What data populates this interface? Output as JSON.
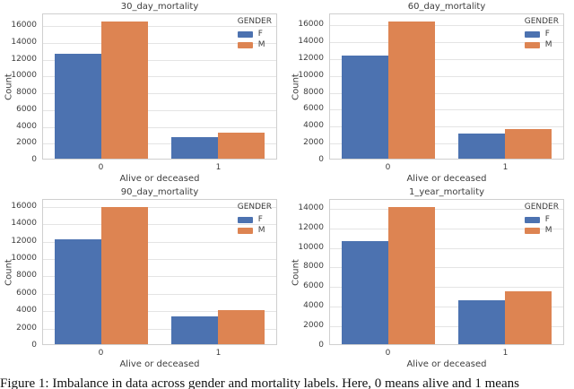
{
  "figure": {
    "caption": "Figure 1: Imbalance in data across gender and mortality labels. Here, 0 means alive and 1 means"
  },
  "style": {
    "female_color": "#4c72b0",
    "male_color": "#dd8452",
    "grid_color": "#e4e4e4",
    "spine_color": "#cfcfcf",
    "text_color": "#3d3d3d"
  },
  "legend": {
    "title": "GENDER",
    "entries": [
      "F",
      "M"
    ]
  },
  "chart_data": [
    {
      "type": "bar",
      "title": "30_day_mortality",
      "xlabel": "Alive or deceased",
      "ylabel": "Count",
      "categories": [
        "0",
        "1"
      ],
      "series": [
        {
          "name": "F",
          "color": "#4c72b0",
          "values": [
            12600,
            2600
          ]
        },
        {
          "name": "M",
          "color": "#dd8452",
          "values": [
            16500,
            3150
          ]
        }
      ],
      "ylim": [
        0,
        17400
      ],
      "ytick_step": 2000,
      "grid": true,
      "legend_title": "GENDER",
      "legend_position": "upper right"
    },
    {
      "type": "bar",
      "title": "60_day_mortality",
      "xlabel": "Alive or deceased",
      "ylabel": "Count",
      "categories": [
        "0",
        "1"
      ],
      "series": [
        {
          "name": "F",
          "color": "#4c72b0",
          "values": [
            12400,
            3000
          ]
        },
        {
          "name": "M",
          "color": "#dd8452",
          "values": [
            16400,
            3600
          ]
        }
      ],
      "ylim": [
        0,
        17300
      ],
      "ytick_step": 2000,
      "grid": true,
      "legend_title": "GENDER",
      "legend_position": "upper right"
    },
    {
      "type": "bar",
      "title": "90_day_mortality",
      "xlabel": "Alive or deceased",
      "ylabel": "Count",
      "categories": [
        "0",
        "1"
      ],
      "series": [
        {
          "name": "F",
          "color": "#4c72b0",
          "values": [
            12200,
            3250
          ]
        },
        {
          "name": "M",
          "color": "#dd8452",
          "values": [
            15950,
            3950
          ]
        }
      ],
      "ylim": [
        0,
        16800
      ],
      "ytick_step": 2000,
      "grid": true,
      "legend_title": "GENDER",
      "legend_position": "upper right"
    },
    {
      "type": "bar",
      "title": "1_year_mortality",
      "xlabel": "Alive or deceased",
      "ylabel": "Count",
      "categories": [
        "0",
        "1"
      ],
      "series": [
        {
          "name": "F",
          "color": "#4c72b0",
          "values": [
            10600,
            4500
          ]
        },
        {
          "name": "M",
          "color": "#dd8452",
          "values": [
            14200,
            5500
          ]
        }
      ],
      "ylim": [
        0,
        14900
      ],
      "ytick_step": 2000,
      "grid": true,
      "legend_title": "GENDER",
      "legend_position": "upper right"
    }
  ]
}
